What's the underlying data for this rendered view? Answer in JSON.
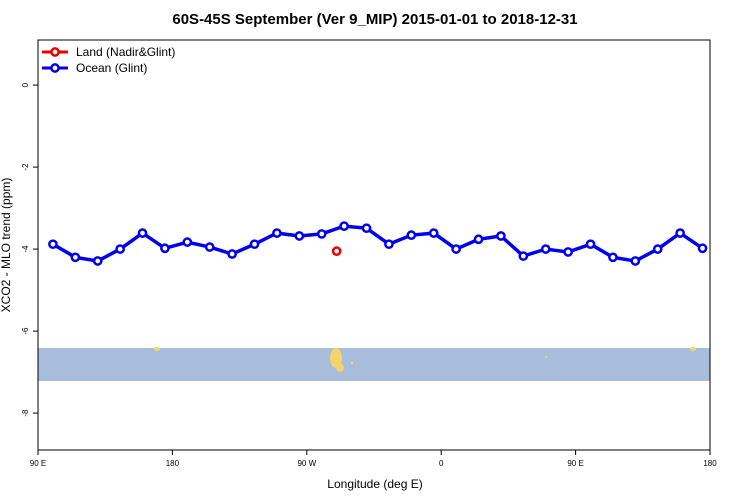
{
  "chart_data": {
    "type": "line",
    "title": "60S-45S September (Ver 9_MIP)   2015-01-01 to 2018-12-31",
    "x_label": "Longitude (deg E)",
    "y_label": "XCO2 - MLO trend (ppm)",
    "xlim": [
      90,
      540
    ],
    "ylim": [
      -8.9,
      1.1
    ],
    "xticks": [
      {
        "value": 90,
        "label": "90 E"
      },
      {
        "value": 180,
        "label": "180"
      },
      {
        "value": 270,
        "label": "90 W"
      },
      {
        "value": 360,
        "label": "0"
      },
      {
        "value": 450,
        "label": "90 E"
      },
      {
        "value": 540,
        "label": "180"
      }
    ],
    "yticks": [
      0,
      -2,
      -4,
      -6,
      -8
    ],
    "legend": "top-left",
    "series": [
      {
        "name": "Land (Nadir&Glint)",
        "color": "#ee0000",
        "x": [
          290
        ],
        "values": [
          -4.05
        ]
      },
      {
        "name": "Ocean (Glint)",
        "color": "#0000ee",
        "x": [
          100,
          115,
          130,
          145,
          160,
          175,
          190,
          205,
          220,
          235,
          250,
          265,
          280,
          295,
          310,
          325,
          340,
          355,
          370,
          385,
          400,
          415,
          430,
          445,
          460,
          475,
          490,
          505,
          520,
          535
        ],
        "values": [
          -3.88,
          -4.2,
          -4.29,
          -4.0,
          -3.61,
          -3.98,
          -3.83,
          -3.95,
          -4.12,
          -3.88,
          -3.61,
          -3.68,
          -3.63,
          -3.44,
          -3.49,
          -3.88,
          -3.66,
          -3.61,
          -4.0,
          -3.76,
          -3.68,
          -4.17,
          -4.0,
          -4.07,
          -3.88,
          -4.2,
          -4.29,
          -4.0,
          -3.61,
          -3.98
        ]
      }
    ]
  }
}
